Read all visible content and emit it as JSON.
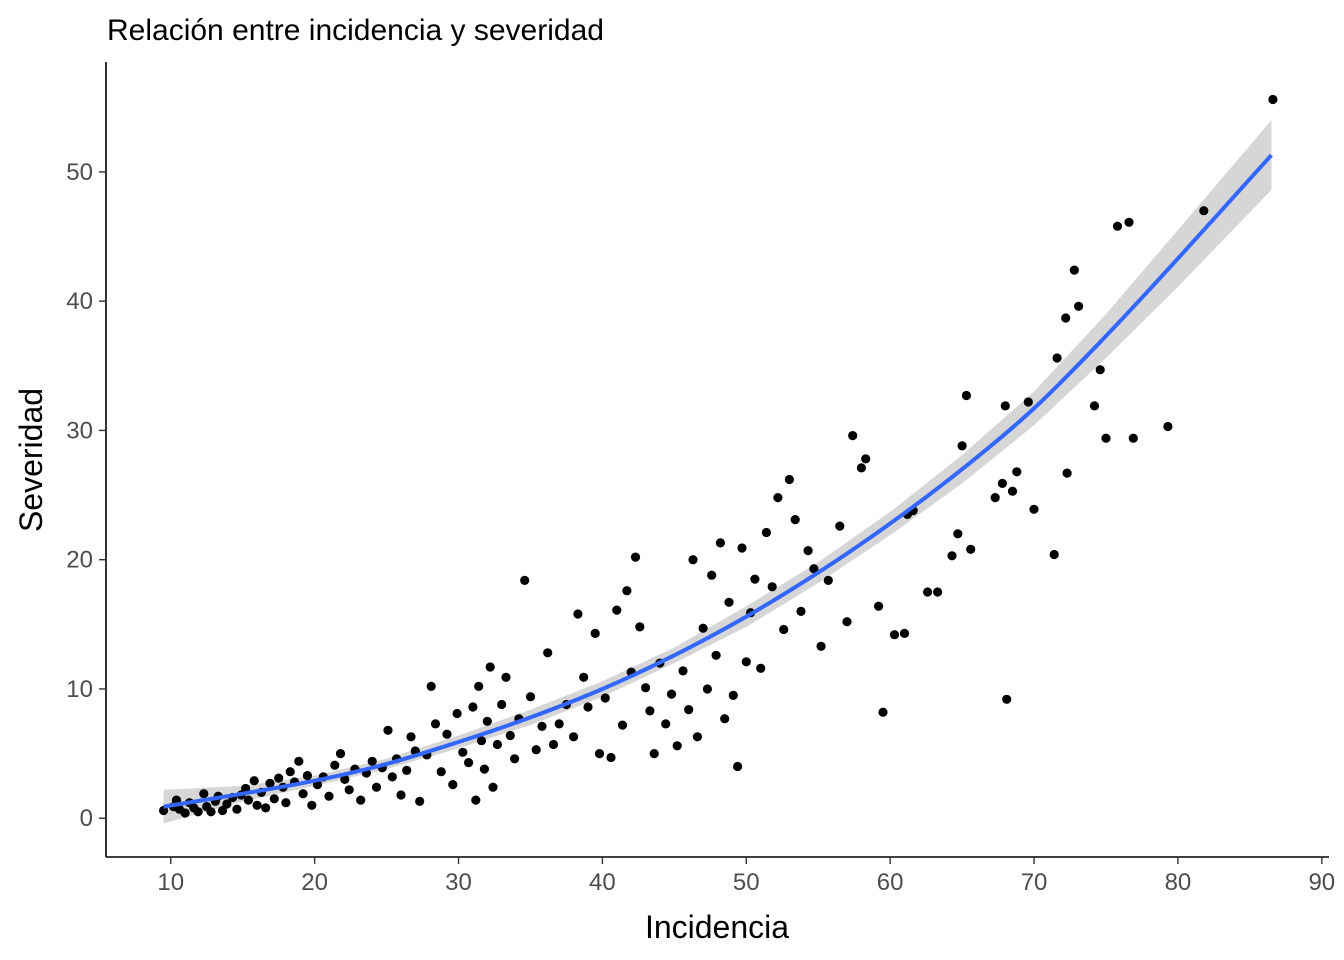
{
  "chart_data": {
    "type": "scatter",
    "title": "Relación entre incidencia y severidad",
    "xlabel": "Incidencia",
    "ylabel": "Severidad",
    "xlim": [
      5.5,
      90.5
    ],
    "ylim": [
      -3,
      58.5
    ],
    "xticks": [
      10,
      20,
      30,
      40,
      50,
      60,
      70,
      80,
      90
    ],
    "yticks": [
      0,
      10,
      20,
      30,
      40,
      50
    ],
    "grid": false,
    "legend": "none",
    "colors": {
      "points": "#000000",
      "trend": "#3366FF",
      "band": "#999999"
    },
    "trend": {
      "x": [
        9.5,
        15,
        20,
        25,
        30,
        35,
        40,
        45,
        50,
        55,
        60,
        65,
        70,
        75,
        80,
        86.5
      ],
      "y": [
        0.9,
        1.9,
        2.9,
        4.2,
        5.9,
        7.8,
        10.0,
        12.6,
        15.6,
        19.0,
        22.8,
        27.0,
        31.7,
        37.3,
        43.3,
        51.3
      ],
      "lower": [
        -0.4,
        1.3,
        2.5,
        3.8,
        5.4,
        7.2,
        9.4,
        12.0,
        14.8,
        18.2,
        21.9,
        25.9,
        30.4,
        35.6,
        41.1,
        48.6
      ],
      "upper": [
        2.2,
        2.5,
        3.3,
        4.6,
        6.4,
        8.4,
        10.6,
        13.2,
        16.4,
        19.8,
        23.7,
        28.1,
        33.0,
        39.0,
        45.5,
        54.0
      ]
    },
    "points": [
      [
        9.5,
        0.6
      ],
      [
        10.2,
        0.9
      ],
      [
        10.4,
        1.4
      ],
      [
        10.6,
        0.7
      ],
      [
        11.0,
        0.4
      ],
      [
        11.3,
        1.2
      ],
      [
        11.6,
        0.8
      ],
      [
        11.9,
        0.5
      ],
      [
        12.3,
        1.9
      ],
      [
        12.5,
        0.9
      ],
      [
        12.8,
        0.5
      ],
      [
        13.1,
        1.3
      ],
      [
        13.3,
        1.7
      ],
      [
        13.6,
        0.6
      ],
      [
        13.9,
        1.1
      ],
      [
        14.3,
        1.6
      ],
      [
        14.6,
        0.7
      ],
      [
        14.9,
        1.8
      ],
      [
        15.2,
        2.3
      ],
      [
        15.4,
        1.4
      ],
      [
        15.8,
        2.9
      ],
      [
        16.0,
        1.0
      ],
      [
        16.3,
        2.0
      ],
      [
        16.6,
        0.8
      ],
      [
        16.9,
        2.7
      ],
      [
        17.2,
        1.5
      ],
      [
        17.5,
        3.1
      ],
      [
        17.8,
        2.4
      ],
      [
        18.0,
        1.2
      ],
      [
        18.3,
        3.6
      ],
      [
        18.6,
        2.8
      ],
      [
        18.9,
        4.4
      ],
      [
        19.2,
        1.9
      ],
      [
        19.5,
        3.3
      ],
      [
        19.8,
        1.0
      ],
      [
        20.2,
        2.6
      ],
      [
        20.6,
        3.2
      ],
      [
        21.0,
        1.7
      ],
      [
        21.4,
        4.1
      ],
      [
        21.8,
        5.0
      ],
      [
        22.1,
        3.0
      ],
      [
        22.4,
        2.2
      ],
      [
        22.8,
        3.8
      ],
      [
        23.2,
        1.4
      ],
      [
        23.6,
        3.5
      ],
      [
        24.0,
        4.4
      ],
      [
        24.3,
        2.4
      ],
      [
        24.7,
        3.9
      ],
      [
        25.1,
        6.8
      ],
      [
        25.4,
        3.2
      ],
      [
        25.7,
        4.6
      ],
      [
        26.0,
        1.8
      ],
      [
        26.4,
        3.7
      ],
      [
        26.7,
        6.3
      ],
      [
        27.0,
        5.2
      ],
      [
        27.3,
        1.3
      ],
      [
        27.8,
        4.9
      ],
      [
        28.1,
        10.2
      ],
      [
        28.4,
        7.3
      ],
      [
        28.8,
        3.6
      ],
      [
        29.2,
        6.5
      ],
      [
        29.6,
        2.6
      ],
      [
        29.9,
        8.1
      ],
      [
        30.3,
        5.1
      ],
      [
        30.7,
        4.3
      ],
      [
        31.0,
        8.6
      ],
      [
        31.2,
        1.4
      ],
      [
        31.4,
        10.2
      ],
      [
        31.6,
        6.0
      ],
      [
        31.8,
        3.8
      ],
      [
        32.0,
        7.5
      ],
      [
        32.2,
        11.7
      ],
      [
        32.4,
        2.4
      ],
      [
        32.7,
        5.7
      ],
      [
        33.0,
        8.8
      ],
      [
        33.3,
        10.9
      ],
      [
        33.6,
        6.4
      ],
      [
        33.9,
        4.6
      ],
      [
        34.2,
        7.7
      ],
      [
        34.6,
        18.4
      ],
      [
        35.0,
        9.4
      ],
      [
        35.4,
        5.3
      ],
      [
        35.8,
        7.1
      ],
      [
        36.2,
        12.8
      ],
      [
        36.6,
        5.7
      ],
      [
        37.0,
        7.3
      ],
      [
        37.5,
        8.8
      ],
      [
        38.0,
        6.3
      ],
      [
        38.3,
        15.8
      ],
      [
        38.7,
        10.9
      ],
      [
        39.0,
        8.6
      ],
      [
        39.5,
        14.3
      ],
      [
        39.8,
        5.0
      ],
      [
        40.2,
        9.3
      ],
      [
        40.6,
        4.7
      ],
      [
        41.0,
        16.1
      ],
      [
        41.4,
        7.2
      ],
      [
        41.7,
        17.6
      ],
      [
        42.0,
        11.3
      ],
      [
        42.3,
        20.2
      ],
      [
        42.6,
        14.8
      ],
      [
        43.0,
        10.1
      ],
      [
        43.3,
        8.3
      ],
      [
        43.6,
        5.0
      ],
      [
        44.0,
        12.0
      ],
      [
        44.4,
        7.3
      ],
      [
        44.8,
        9.6
      ],
      [
        45.2,
        5.6
      ],
      [
        45.6,
        11.4
      ],
      [
        46.0,
        8.4
      ],
      [
        46.3,
        20.0
      ],
      [
        46.6,
        6.3
      ],
      [
        47.0,
        14.7
      ],
      [
        47.3,
        10.0
      ],
      [
        47.6,
        18.8
      ],
      [
        47.9,
        12.6
      ],
      [
        48.2,
        21.3
      ],
      [
        48.5,
        7.7
      ],
      [
        48.8,
        16.7
      ],
      [
        49.1,
        9.5
      ],
      [
        49.4,
        4.0
      ],
      [
        49.7,
        20.9
      ],
      [
        50.0,
        12.1
      ],
      [
        50.3,
        15.9
      ],
      [
        50.6,
        18.5
      ],
      [
        51.0,
        11.6
      ],
      [
        51.4,
        22.1
      ],
      [
        51.8,
        17.9
      ],
      [
        52.2,
        24.8
      ],
      [
        52.6,
        14.6
      ],
      [
        53.0,
        26.2
      ],
      [
        53.4,
        23.1
      ],
      [
        53.8,
        16.0
      ],
      [
        54.3,
        20.7
      ],
      [
        54.7,
        19.3
      ],
      [
        55.2,
        13.3
      ],
      [
        55.7,
        18.4
      ],
      [
        56.5,
        22.6
      ],
      [
        57.0,
        15.2
      ],
      [
        57.4,
        29.6
      ],
      [
        58.0,
        27.1
      ],
      [
        58.3,
        27.8
      ],
      [
        59.2,
        16.4
      ],
      [
        59.5,
        8.2
      ],
      [
        60.3,
        14.2
      ],
      [
        61.0,
        14.3
      ],
      [
        61.2,
        23.5
      ],
      [
        61.6,
        23.8
      ],
      [
        62.6,
        17.5
      ],
      [
        63.3,
        17.5
      ],
      [
        64.3,
        20.3
      ],
      [
        64.7,
        22.0
      ],
      [
        65.0,
        28.8
      ],
      [
        65.3,
        32.7
      ],
      [
        65.6,
        20.8
      ],
      [
        67.3,
        24.8
      ],
      [
        67.8,
        25.9
      ],
      [
        68.0,
        31.9
      ],
      [
        68.1,
        9.2
      ],
      [
        68.5,
        25.3
      ],
      [
        68.8,
        26.8
      ],
      [
        69.6,
        32.2
      ],
      [
        70.0,
        23.9
      ],
      [
        71.4,
        20.4
      ],
      [
        71.6,
        35.6
      ],
      [
        72.2,
        38.7
      ],
      [
        72.3,
        26.7
      ],
      [
        72.8,
        42.4
      ],
      [
        73.1,
        39.6
      ],
      [
        74.2,
        31.9
      ],
      [
        74.6,
        34.7
      ],
      [
        75.0,
        29.4
      ],
      [
        75.8,
        45.8
      ],
      [
        76.6,
        46.1
      ],
      [
        76.9,
        29.4
      ],
      [
        79.3,
        30.3
      ],
      [
        81.8,
        47.0
      ],
      [
        86.6,
        55.6
      ]
    ]
  }
}
